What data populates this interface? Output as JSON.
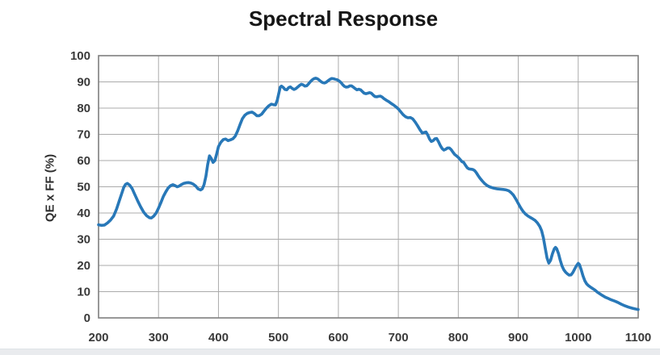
{
  "title": "Spectral Response",
  "colors": {
    "line": "#2878b8",
    "grid": "#ababab",
    "border": "#7f7f7f",
    "tick_text": "#3a3a3a",
    "title_text": "#161616",
    "bottom_strip": "#e9ebee"
  },
  "chart_data": {
    "type": "line",
    "title": "Spectral Response",
    "xlabel": "",
    "ylabel": "QE x FF (%)",
    "xlim": [
      200,
      1100
    ],
    "ylim": [
      0,
      100
    ],
    "x_ticks": [
      200,
      300,
      400,
      500,
      600,
      700,
      800,
      900,
      1000,
      1100
    ],
    "y_ticks": [
      0,
      10,
      20,
      30,
      40,
      50,
      60,
      70,
      80,
      90,
      100
    ],
    "grid": true,
    "legend": "none",
    "series": [
      {
        "name": "QE x FF",
        "color": "#2878b8",
        "x": [
          200,
          205,
          210,
          215,
          220,
          225,
          230,
          235,
          238,
          242,
          245,
          248,
          252,
          256,
          260,
          265,
          270,
          275,
          280,
          285,
          288,
          292,
          296,
          300,
          304,
          308,
          312,
          316,
          320,
          324,
          328,
          331,
          334,
          338,
          342,
          346,
          350,
          354,
          358,
          362,
          366,
          370,
          373,
          376,
          379,
          382,
          385,
          388,
          391,
          394,
          397,
          400,
          404,
          408,
          412,
          416,
          420,
          424,
          428,
          432,
          436,
          440,
          444,
          448,
          452,
          456,
          460,
          464,
          468,
          472,
          476,
          480,
          484,
          488,
          492,
          495,
          498,
          501,
          503,
          505,
          508,
          511,
          514,
          517,
          520,
          523,
          526,
          529,
          532,
          535,
          538,
          541,
          544,
          547,
          550,
          553,
          556,
          559,
          562,
          565,
          568,
          571,
          574,
          577,
          580,
          583,
          586,
          589,
          592,
          595,
          598,
          601,
          604,
          607,
          610,
          613,
          616,
          619,
          622,
          625,
          628,
          631,
          634,
          637,
          640,
          643,
          646,
          649,
          652,
          655,
          658,
          661,
          664,
          667,
          670,
          673,
          676,
          680,
          684,
          688,
          692,
          696,
          700,
          704,
          708,
          712,
          716,
          720,
          724,
          728,
          732,
          736,
          740,
          743,
          746,
          749,
          752,
          755,
          758,
          761,
          764,
          767,
          770,
          773,
          776,
          779,
          782,
          785,
          788,
          791,
          794,
          797,
          800,
          803,
          806,
          809,
          812,
          815,
          818,
          821,
          824,
          827,
          830,
          833,
          836,
          840,
          844,
          848,
          852,
          856,
          860,
          865,
          870,
          875,
          880,
          884,
          888,
          892,
          896,
          900,
          904,
          908,
          912,
          916,
          920,
          924,
          928,
          932,
          936,
          939,
          942,
          945,
          948,
          951,
          954,
          957,
          960,
          962,
          964,
          967,
          970,
          973,
          976,
          979,
          982,
          985,
          988,
          991,
          994,
          997,
          1000,
          1002,
          1005,
          1008,
          1011,
          1014,
          1017,
          1020,
          1024,
          1028,
          1032,
          1036,
          1040,
          1045,
          1050,
          1055,
          1060,
          1066,
          1072,
          1078,
          1084,
          1090,
          1095,
          1100
        ],
        "y": [
          35.5,
          35.3,
          35.4,
          36.2,
          37.3,
          38.8,
          41.5,
          45.0,
          47.0,
          49.8,
          50.9,
          51.3,
          50.6,
          49.3,
          47.3,
          44.8,
          42.4,
          40.4,
          39.0,
          38.2,
          38.1,
          38.8,
          40.0,
          41.8,
          44.0,
          46.3,
          48.0,
          49.5,
          50.4,
          50.8,
          50.4,
          50.0,
          50.2,
          50.8,
          51.3,
          51.5,
          51.6,
          51.4,
          51.0,
          50.3,
          49.2,
          48.8,
          49.2,
          50.8,
          54.0,
          58.5,
          61.8,
          60.8,
          59.3,
          60.0,
          62.5,
          65.3,
          67.0,
          68.0,
          68.2,
          67.6,
          67.9,
          68.3,
          69.3,
          71.3,
          73.8,
          76.0,
          77.3,
          78.0,
          78.3,
          78.5,
          77.9,
          77.1,
          77.1,
          77.7,
          78.9,
          80.0,
          80.9,
          81.5,
          81.3,
          81.2,
          83.0,
          86.0,
          88.0,
          88.4,
          87.9,
          87.1,
          87.0,
          87.8,
          88.1,
          87.5,
          87.1,
          87.4,
          88.0,
          88.6,
          89.1,
          88.9,
          88.4,
          88.5,
          89.2,
          90.0,
          90.7,
          91.2,
          91.4,
          91.2,
          90.7,
          90.1,
          89.7,
          89.6,
          89.9,
          90.5,
          91.0,
          91.3,
          91.2,
          91.0,
          90.8,
          90.4,
          89.8,
          89.0,
          88.3,
          88.0,
          88.1,
          88.5,
          88.5,
          88.0,
          87.4,
          87.0,
          87.2,
          87.0,
          86.3,
          85.7,
          85.5,
          85.7,
          85.9,
          85.7,
          85.0,
          84.4,
          84.3,
          84.5,
          84.6,
          84.2,
          83.6,
          83.0,
          82.5,
          81.8,
          81.2,
          80.5,
          79.7,
          78.6,
          77.5,
          76.7,
          76.3,
          76.4,
          75.9,
          74.7,
          73.3,
          71.8,
          70.5,
          70.7,
          70.9,
          69.8,
          68.2,
          67.3,
          67.6,
          68.3,
          68.4,
          67.2,
          65.7,
          64.6,
          64.0,
          64.3,
          64.8,
          64.8,
          64.2,
          63.2,
          62.3,
          61.8,
          61.2,
          60.4,
          59.6,
          59.3,
          58.2,
          57.2,
          56.8,
          56.7,
          56.6,
          56.2,
          55.4,
          54.3,
          53.3,
          52.2,
          51.2,
          50.5,
          50.0,
          49.7,
          49.4,
          49.2,
          49.1,
          49.0,
          48.8,
          48.5,
          47.8,
          46.8,
          45.3,
          43.6,
          42.0,
          40.6,
          39.6,
          38.9,
          38.3,
          37.8,
          37.2,
          36.2,
          34.8,
          33.2,
          30.5,
          26.5,
          22.8,
          20.9,
          22.0,
          24.5,
          26.3,
          26.9,
          26.4,
          24.6,
          22.0,
          19.8,
          18.3,
          17.4,
          16.8,
          16.3,
          16.4,
          17.3,
          18.6,
          19.9,
          20.8,
          20.3,
          18.3,
          16.0,
          14.2,
          13.0,
          12.3,
          11.8,
          11.2,
          10.6,
          9.8,
          9.2,
          8.6,
          7.9,
          7.4,
          6.9,
          6.5,
          5.9,
          5.2,
          4.6,
          4.1,
          3.7,
          3.4,
          3.2
        ]
      }
    ]
  }
}
